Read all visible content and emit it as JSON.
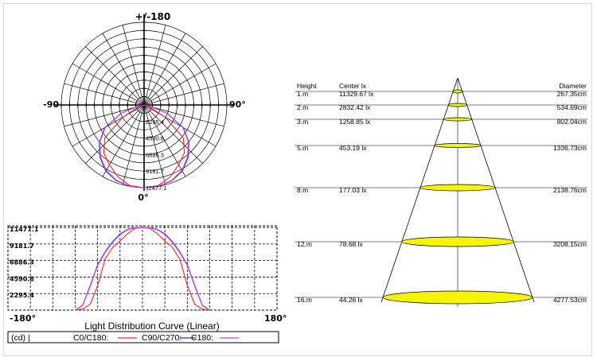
{
  "polar_chart": {
    "top_label": "+/-180",
    "left_label": "-90",
    "right_label": "90°",
    "bottom_label": "0°",
    "ring_labels": [
      "2295.4",
      "4590.8",
      "6886.3",
      "9181.7",
      "11477.1"
    ]
  },
  "linear_chart": {
    "y_ticks": [
      "11477.1",
      "9181.7",
      "6886.3",
      "4590.8",
      "2295.4"
    ],
    "x_left": "-180°",
    "x_right": "180°",
    "title": "Light Distribution Curve (Linear)",
    "legend": {
      "unit": "(cd)  |",
      "c0": "C0/C180:",
      "c90": "C90/C270:",
      "c180": "C180:"
    }
  },
  "colors": {
    "c0": "#ff2020",
    "c90": "#2020ff",
    "c180": "#d040d0",
    "ellipse": "#f5f500",
    "grid": "#000000"
  },
  "cone": {
    "headers": {
      "height": "Height",
      "center": "Center lx",
      "diameter": "Diameter"
    },
    "rows": [
      {
        "height": "1.m",
        "center": "11329.67 lx",
        "diameter": "267.35cm"
      },
      {
        "height": "2.m",
        "center": "2832.42 lx",
        "diameter": "534.69cm"
      },
      {
        "height": "3.m",
        "center": "1258.85 lx",
        "diameter": "802.04cm"
      },
      {
        "height": "5.m",
        "center": "453.19 lx",
        "diameter": "1336.73cm"
      },
      {
        "height": "8.m",
        "center": "177.03 lx",
        "diameter": "2138.76cm"
      },
      {
        "height": "12.m",
        "center": "78.68 lx",
        "diameter": "3208.15cm"
      },
      {
        "height": "16.m",
        "center": "44.26 lx",
        "diameter": "4277.53cm"
      }
    ]
  },
  "chart_data": [
    {
      "type": "polar",
      "title": "",
      "r_max": 11477.1,
      "r_ticks": [
        2295.4,
        4590.8,
        6886.3,
        9181.7,
        11477.1
      ],
      "angle_labels": [
        "+/-180",
        "-90",
        "90°",
        "0°"
      ],
      "series": [
        {
          "name": "C0/C180",
          "angles": [
            0,
            10,
            20,
            30,
            40,
            50,
            60,
            70,
            80,
            90
          ],
          "values": [
            11477.1,
            11350,
            10600,
            9600,
            8700,
            7100,
            3400,
            800,
            150,
            0
          ]
        },
        {
          "name": "C90/C270",
          "angles": [
            0,
            10,
            20,
            30,
            40,
            50,
            60,
            70,
            80,
            90
          ],
          "values": [
            11477.1,
            11450,
            11200,
            10600,
            9500,
            8100,
            6300,
            3400,
            700,
            0
          ]
        },
        {
          "name": "C180",
          "angles": [
            0,
            10,
            20,
            30,
            40,
            50,
            60,
            70,
            80,
            90
          ],
          "values": [
            11477.1,
            11450,
            11150,
            10500,
            9400,
            8000,
            6200,
            3300,
            650,
            0
          ]
        }
      ]
    },
    {
      "type": "line",
      "title": "Light Distribution Curve (Linear)",
      "xlabel": "",
      "ylabel": "(cd)",
      "xlim": [
        -180,
        180
      ],
      "ylim": [
        0,
        11477.1
      ],
      "y_ticks": [
        2295.4,
        4590.8,
        6886.3,
        9181.7,
        11477.1
      ],
      "series": [
        {
          "name": "C0/C180",
          "x": [
            -90,
            -80,
            -70,
            -60,
            -50,
            -40,
            -30,
            -20,
            -10,
            0,
            10,
            20,
            30,
            40,
            50,
            60,
            70,
            80,
            90
          ],
          "y": [
            0,
            150,
            800,
            3400,
            7100,
            8700,
            9600,
            10600,
            11350,
            11477.1,
            11350,
            10600,
            9600,
            8700,
            7100,
            3400,
            800,
            150,
            0
          ]
        },
        {
          "name": "C90/C270",
          "x": [
            -90,
            -80,
            -70,
            -60,
            -50,
            -40,
            -30,
            -20,
            -10,
            0,
            10,
            20,
            30,
            40,
            50,
            60,
            70,
            80,
            90
          ],
          "y": [
            0,
            700,
            3400,
            6300,
            8100,
            9500,
            10600,
            11200,
            11450,
            11477.1,
            11450,
            11200,
            10600,
            9500,
            8100,
            6300,
            3400,
            700,
            0
          ]
        },
        {
          "name": "C180",
          "x": [
            -90,
            -80,
            -70,
            -60,
            -50,
            -40,
            -30,
            -20,
            -10,
            0,
            10,
            20,
            30,
            40,
            50,
            60,
            70,
            80,
            90
          ],
          "y": [
            0,
            650,
            3300,
            6200,
            8000,
            9400,
            10500,
            11150,
            11450,
            11477.1,
            11450,
            11150,
            10500,
            9400,
            8000,
            6200,
            3300,
            650,
            0
          ]
        }
      ]
    },
    {
      "type": "table",
      "title": "",
      "columns": [
        "Height",
        "Center lx",
        "Diameter"
      ],
      "rows": [
        [
          "1.m",
          "11329.67 lx",
          "267.35cm"
        ],
        [
          "2.m",
          "2832.42 lx",
          "534.69cm"
        ],
        [
          "3.m",
          "1258.85 lx",
          "802.04cm"
        ],
        [
          "5.m",
          "453.19 lx",
          "1336.73cm"
        ],
        [
          "8.m",
          "177.03 lx",
          "2138.76cm"
        ],
        [
          "12.m",
          "78.68 lx",
          "3208.15cm"
        ],
        [
          "16.m",
          "44.26 lx",
          "4277.53cm"
        ]
      ]
    }
  ]
}
